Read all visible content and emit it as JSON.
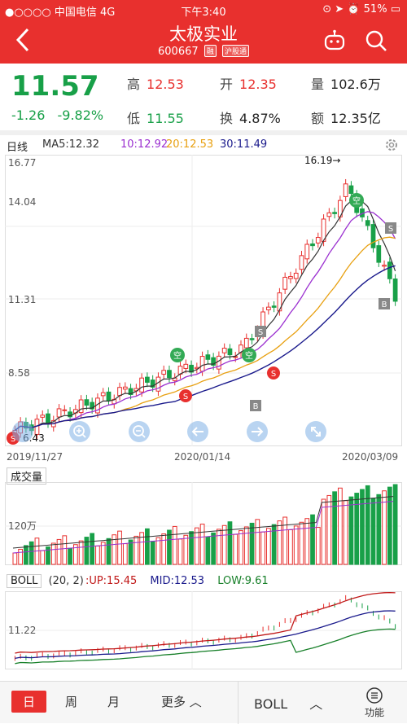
{
  "status_bar": {
    "carrier": "●○○○○ 中国电信 4G",
    "time": "下午3:40",
    "battery": "51%"
  },
  "header": {
    "title": "太极实业",
    "code": "600667",
    "badge1": "融",
    "badge2": "沪股通"
  },
  "quote": {
    "price": "11.57",
    "change": "-1.26",
    "change_pct": "-9.82%",
    "high_label": "高",
    "high": "12.53",
    "open_label": "开",
    "open": "12.35",
    "vol_label": "量",
    "vol": "102.6万",
    "low_label": "低",
    "low": "11.55",
    "turnover_label": "换",
    "turnover": "4.87%",
    "amount_label": "额",
    "amount": "12.35亿"
  },
  "ma_row": {
    "period": "日线",
    "ma5": "MA5:12.32",
    "ma10": "10:12.92",
    "ma20": "20:12.53",
    "ma30": "30:11.49"
  },
  "kchart": {
    "y_labels": [
      "16.77",
      "14.04",
      "11.31",
      "8.58"
    ],
    "low_marker": "6.43",
    "high_marker": "16.19→",
    "dates": [
      "2019/11/27",
      "2020/01/14",
      "2020/03/09"
    ],
    "signal_kong": "空",
    "signal_s": "S",
    "signal_b": "B"
  },
  "volume": {
    "label": "成交量",
    "y_label": "120万"
  },
  "boll": {
    "name": "BOLL",
    "params": "(20, 2)",
    "up": ":UP:15.45",
    "mid": "MID:12.53",
    "low": "LOW:9.61",
    "y_label": "11.22"
  },
  "bottom_nav": {
    "day": "日",
    "week": "周",
    "month": "月",
    "more": "更多",
    "indicator": "BOLL",
    "function": "功能"
  },
  "colors": {
    "brand_red": "#e8302e",
    "down_green": "#18a048",
    "ma5": "#333333",
    "ma10": "#9b30d0",
    "ma20": "#e8a010",
    "ma30": "#1a1a8c"
  }
}
